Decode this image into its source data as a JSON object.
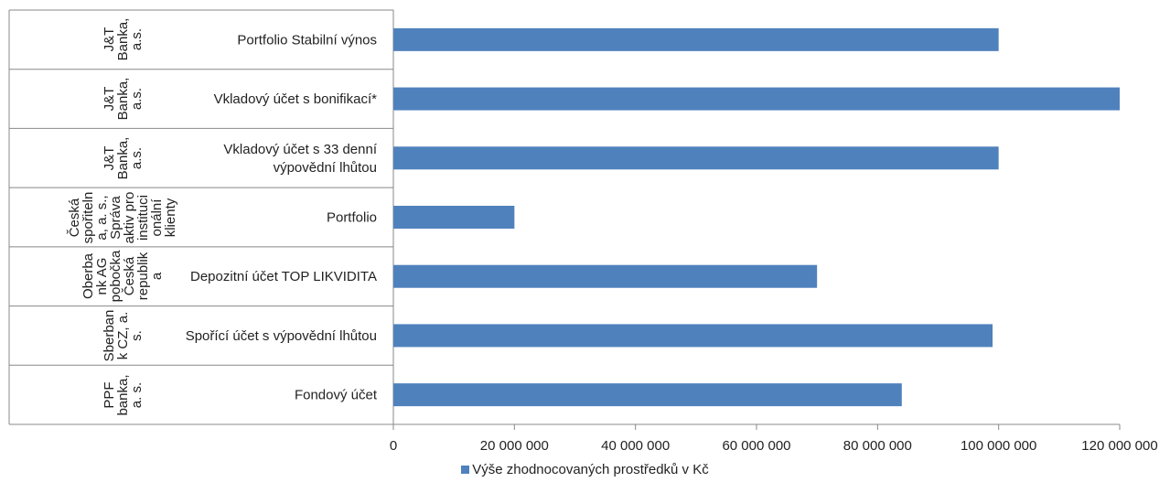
{
  "chart_data": {
    "type": "bar",
    "orientation": "horizontal",
    "categories": [
      {
        "bank": "J&T\nBanka,\na.s.",
        "product": "Portfolio Stabilní výnos"
      },
      {
        "bank": "J&T\nBanka,\na.s.",
        "product": "Vkladový účet s bonifikací*"
      },
      {
        "bank": "J&T\nBanka,\na.s.",
        "product": "Vkladový účet s 33 denní\nvýpovědní lhůtou"
      },
      {
        "bank": "Česká\nspořiteln\na, a. s.,\nSpráva\naktiv pro\ninstituci\nonální\nklienty",
        "product": "Portfolio"
      },
      {
        "bank": "Oberba\nnk AG\npobočka\nČeská\nrepublik\na",
        "product": "Depozitní účet TOP LIKVIDITA"
      },
      {
        "bank": "Sberban\nk CZ, a.\ns.",
        "product": "Spořící účet s výpovědní lhůtou"
      },
      {
        "bank": "PPF\nbanka,\na. s.",
        "product": "Fondový účet"
      }
    ],
    "series": [
      {
        "name": "Výše zhodnocovaných prostředků v Kč",
        "values": [
          100000000,
          120000000,
          100000000,
          20000000,
          70000000,
          99000000,
          84000000
        ]
      }
    ],
    "xlim": [
      0,
      120000000
    ],
    "ticks": [
      "0",
      "20 000 000",
      "40 000 000",
      "60 000 000",
      "80 000 000",
      "100 000 000",
      "120 000 000"
    ],
    "tick_values": [
      0,
      20000000,
      40000000,
      60000000,
      80000000,
      100000000,
      120000000
    ],
    "bar_color": "#4f81bd",
    "grid": false,
    "legend_position": "bottom"
  },
  "legend": {
    "label": "Výše zhodnocovaných prostředků v Kč"
  }
}
